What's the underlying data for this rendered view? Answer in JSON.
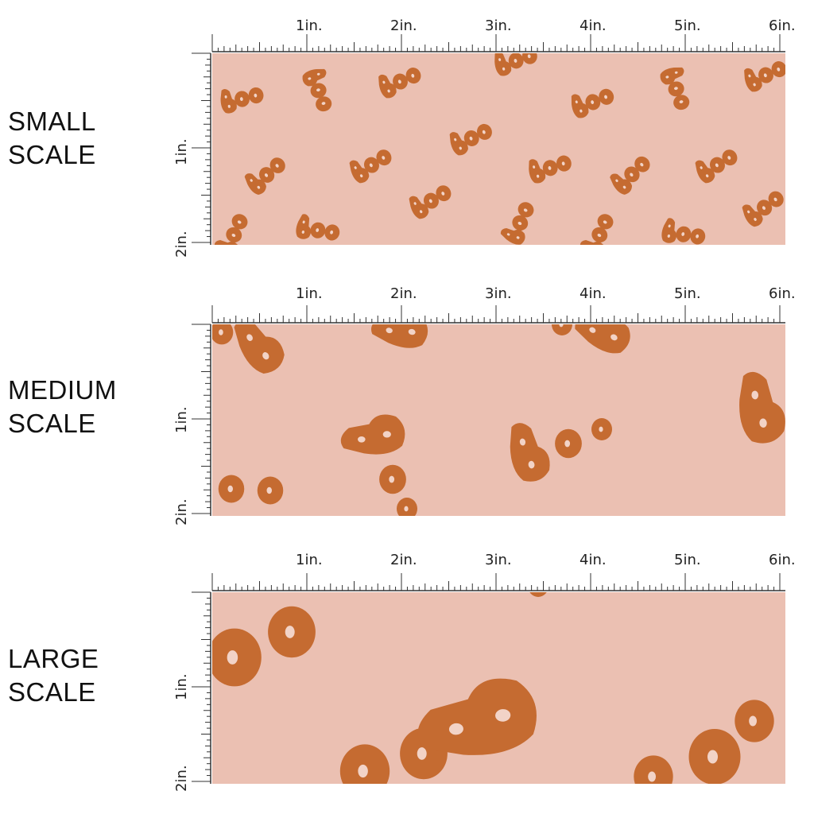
{
  "colors": {
    "background": "#EBC0B2",
    "motif": "#C56B31",
    "hole": "#F2D3C7",
    "ruler": "#333333"
  },
  "ruler_labels": {
    "horizontal": [
      "1in.",
      "2in.",
      "3in.",
      "4in.",
      "5in.",
      "6in."
    ],
    "vertical": [
      "1in.",
      "2in."
    ]
  },
  "scales": [
    {
      "label_line1": "SMALL",
      "label_line2": "SCALE",
      "motif_size": 1
    },
    {
      "label_line1": "MEDIUM",
      "label_line2": "SCALE",
      "motif_size": 2.5
    },
    {
      "label_line1": "LARGE",
      "label_line2": "SCALE",
      "motif_size": 5
    }
  ]
}
